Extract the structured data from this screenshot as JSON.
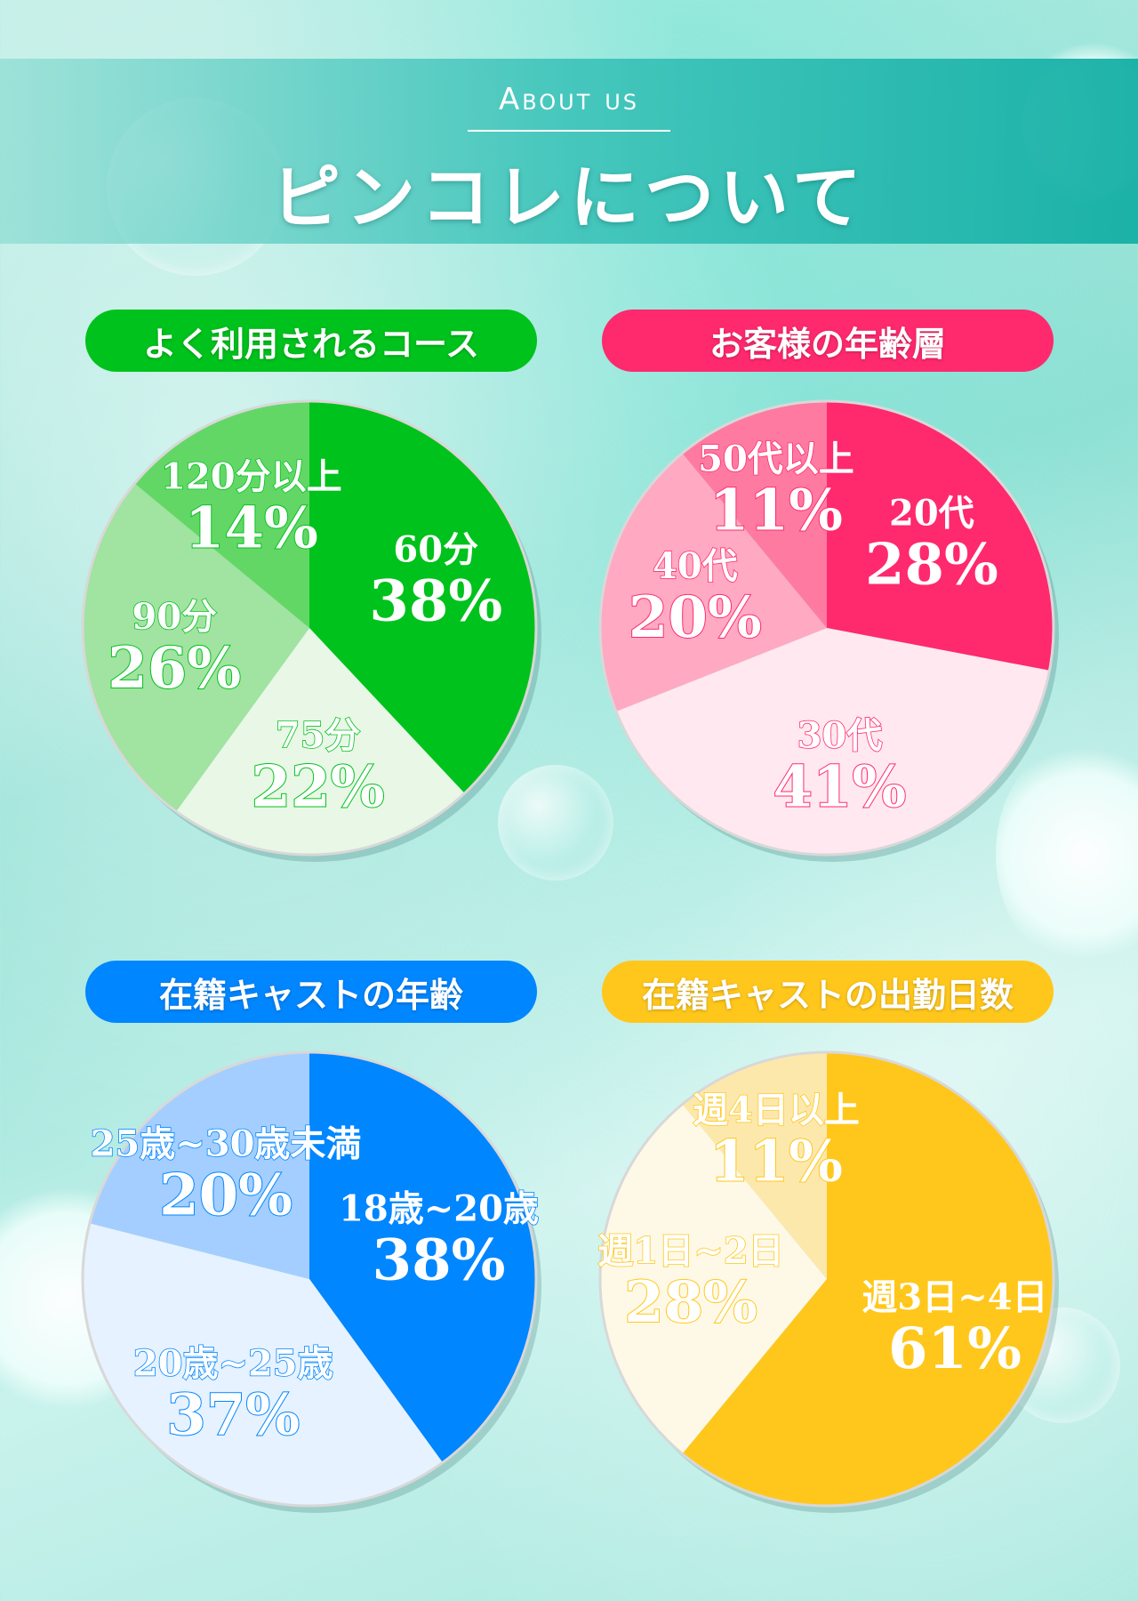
{
  "header": {
    "about_label": "About us",
    "title": "ピンコレについて"
  },
  "chart_data": [
    {
      "type": "pie",
      "title": "よく利用されるコース",
      "accent": "#00c21c",
      "label_style": "white",
      "slices": [
        {
          "label": "60分",
          "value": 38,
          "display": "38%",
          "color": "#00c21c"
        },
        {
          "label": "75分",
          "value": 22,
          "display": "22%",
          "color": "#e8f7e6"
        },
        {
          "label": "90分",
          "value": 26,
          "display": "26%",
          "color": "#a1e3a0"
        },
        {
          "label": "120分以上",
          "value": 14,
          "display": "14%",
          "color": "#63d766"
        }
      ]
    },
    {
      "type": "pie",
      "title": "お客様の年齢層",
      "accent": "#ff296d",
      "label_style": "white",
      "slices": [
        {
          "label": "20代",
          "value": 28,
          "display": "28%",
          "color": "#ff296d"
        },
        {
          "label": "30代",
          "value": 41,
          "display": "41%",
          "color": "#ffe8ef"
        },
        {
          "label": "40代",
          "value": 20,
          "display": "20%",
          "color": "#ffa9c2"
        },
        {
          "label": "50代以上",
          "value": 11,
          "display": "11%",
          "color": "#ff7aa1"
        }
      ]
    },
    {
      "type": "pie",
      "title": "在籍キャストの年齢",
      "accent": "#0086ff",
      "label_style": "white",
      "slices": [
        {
          "label": "18歳~20歳",
          "value": 38,
          "display": "38%",
          "color": "#0086ff"
        },
        {
          "label": "20歳~25歳",
          "value": 37,
          "display": "37%",
          "color": "#e6f2ff"
        },
        {
          "label": "25歳~30歳未満",
          "value": 20,
          "display": "20%",
          "color": "#a3ceff"
        }
      ]
    },
    {
      "type": "pie",
      "title": "在籍キャストの出勤日数",
      "accent": "#ffc71b",
      "label_style": "white",
      "slices": [
        {
          "label": "週3日~4日",
          "value": 61,
          "display": "61%",
          "color": "#ffc71b"
        },
        {
          "label": "週1日~2日",
          "value": 28,
          "display": "28%",
          "color": "#fef9e7"
        },
        {
          "label": "週4日以上",
          "value": 11,
          "display": "11%",
          "color": "#fde8ac"
        }
      ]
    }
  ],
  "colors": {
    "green": "#00c21c",
    "pink": "#ff296d",
    "blue": "#0086ff",
    "yellow": "#ffc71b"
  }
}
